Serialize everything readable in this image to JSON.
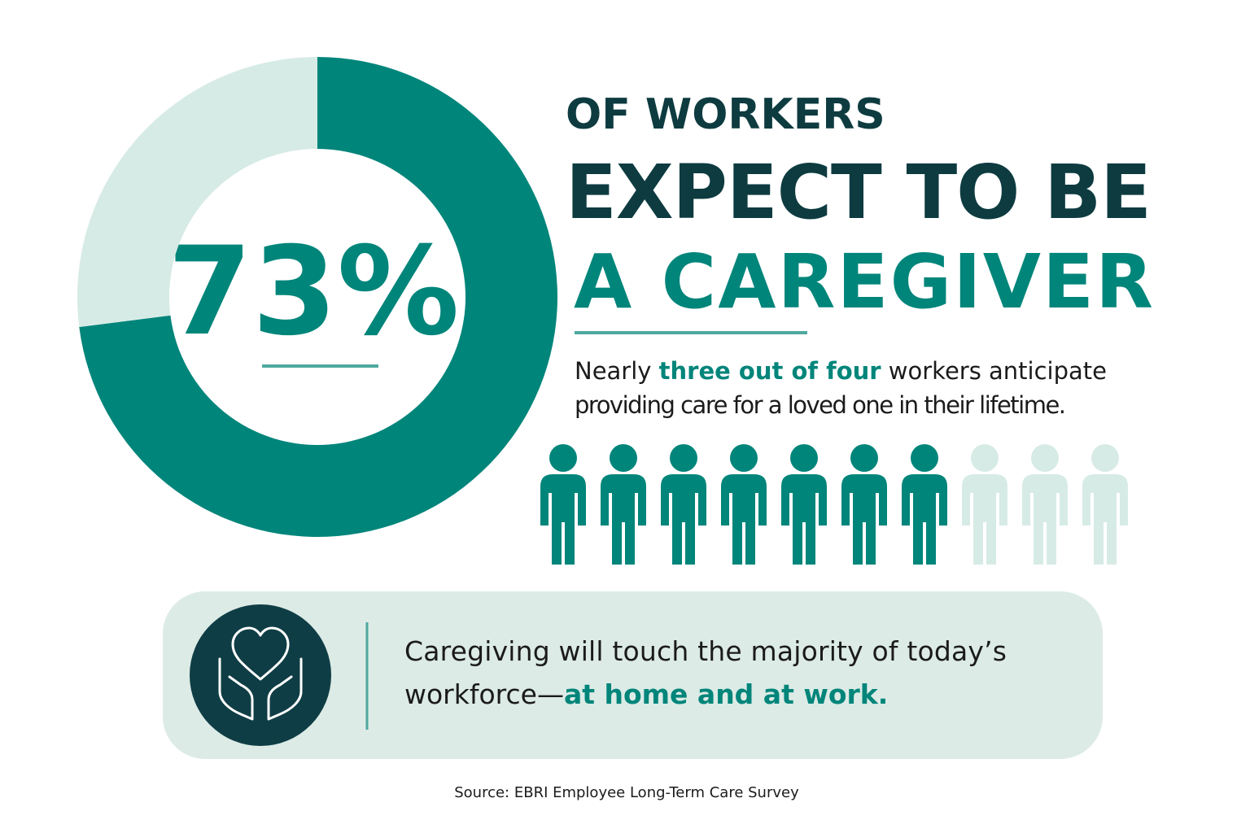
{
  "chart_data": [
    {
      "type": "donut",
      "values": [
        73,
        27
      ],
      "value_labels": [
        "73%",
        null
      ],
      "colors": [
        "#00857a",
        "#d7ebe6"
      ]
    },
    {
      "type": "pictograph",
      "values": [
        7,
        3
      ],
      "colors": [
        "#00857a",
        "#d7ebe6"
      ]
    }
  ],
  "headline": {
    "line1": "OF WORKERS",
    "line2": "EXPECT TO BE",
    "line3": "A CAREGIVER"
  },
  "description": {
    "line1": [
      "Nearly ",
      "three out of four",
      " workers anticipate"
    ],
    "line2": "providing care for a loved one in their lifetime."
  },
  "callout": {
    "line1": "Caregiving will touch the majority of today’s",
    "line2": [
      "workforce—",
      "at home and at work."
    ]
  },
  "source": "Source: EBRI Employee Long-Term Care Survey"
}
